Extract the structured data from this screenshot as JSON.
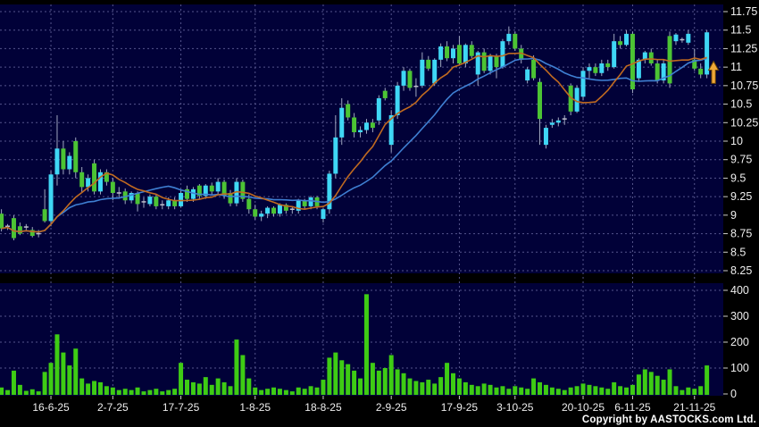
{
  "footer": {
    "copyright": "Copyright by AASTOCKS.com Ltd."
  },
  "chart_data": {
    "type": "candlestick_with_volume",
    "title": "",
    "grid": true,
    "price_axis": {
      "min": 8.25,
      "max": 11.75,
      "step": 0.25,
      "ticks": [
        "11.75",
        "11.5",
        "11.25",
        "11",
        "10.75",
        "10.5",
        "10.25",
        "10",
        "9.75",
        "9.5",
        "9.25",
        "9",
        "8.75",
        "8.5",
        "8.25"
      ]
    },
    "volume_axis": {
      "min": 0,
      "max": 400,
      "step": 100,
      "ticks": [
        "400",
        "300",
        "200",
        "100",
        "0"
      ]
    },
    "x_ticks": [
      {
        "index": 8,
        "label": "16-6-25"
      },
      {
        "index": 18,
        "label": "2-7-25"
      },
      {
        "index": 29,
        "label": "17-7-25"
      },
      {
        "index": 41,
        "label": "1-8-25"
      },
      {
        "index": 52,
        "label": "18-8-25"
      },
      {
        "index": 63,
        "label": "2-9-25"
      },
      {
        "index": 74,
        "label": "17-9-25"
      },
      {
        "index": 83,
        "label": "3-10-25"
      },
      {
        "index": 94,
        "label": "20-10-25"
      },
      {
        "index": 102,
        "label": "6-11-25"
      },
      {
        "index": 112,
        "label": "21-11-25"
      }
    ],
    "ma": {
      "short_period": 10,
      "long_period": 20
    },
    "signal_arrow": {
      "index": 114,
      "direction": "up",
      "tip_price": 11.08,
      "base_price": 10.78
    },
    "colors": {
      "background": "#000000",
      "panel": "#010138",
      "grid": "#55558c",
      "up": "#3fd7f5",
      "down": "#4cc434",
      "doji": "#c0c0cc",
      "wick": "#a0a8c0",
      "volume": "#3ecc14",
      "ma_short": "#c06a20",
      "ma_long": "#3f7fd2",
      "axis_text": "#eeeeee",
      "tick_mark": "#cccccc",
      "arrow_fill": "#f0a838",
      "arrow_stroke": "#6b4404"
    },
    "candles": [
      [
        9.02,
        9.08,
        8.78,
        8.82,
        25
      ],
      [
        8.84,
        8.88,
        8.8,
        8.85,
        15
      ],
      [
        8.96,
        9.0,
        8.66,
        8.69,
        90
      ],
      [
        8.85,
        8.9,
        8.73,
        8.75,
        35
      ],
      [
        8.84,
        8.88,
        8.8,
        8.84,
        12
      ],
      [
        8.8,
        8.84,
        8.7,
        8.72,
        18
      ],
      [
        8.75,
        8.8,
        8.7,
        8.75,
        10
      ],
      [
        9.08,
        9.35,
        8.9,
        8.92,
        85
      ],
      [
        8.92,
        9.6,
        8.85,
        9.55,
        120
      ],
      [
        9.55,
        10.35,
        9.4,
        9.9,
        230
      ],
      [
        9.9,
        10.0,
        9.55,
        9.62,
        160
      ],
      [
        9.62,
        9.85,
        9.55,
        9.8,
        110
      ],
      [
        10.0,
        10.05,
        9.5,
        9.58,
        175
      ],
      [
        9.58,
        9.65,
        9.3,
        9.38,
        60
      ],
      [
        9.38,
        9.55,
        9.32,
        9.5,
        40
      ],
      [
        9.7,
        9.75,
        9.28,
        9.32,
        50
      ],
      [
        9.32,
        9.62,
        9.28,
        9.58,
        45
      ],
      [
        9.58,
        9.62,
        9.4,
        9.45,
        30
      ],
      [
        9.45,
        9.5,
        9.2,
        9.3,
        25
      ],
      [
        9.3,
        9.38,
        9.22,
        9.3,
        15
      ],
      [
        9.32,
        9.36,
        9.15,
        9.2,
        20
      ],
      [
        9.2,
        9.32,
        9.16,
        9.3,
        15
      ],
      [
        9.3,
        9.32,
        9.05,
        9.15,
        25
      ],
      [
        9.18,
        9.24,
        9.1,
        9.18,
        10
      ],
      [
        9.15,
        9.28,
        9.12,
        9.25,
        15
      ],
      [
        9.25,
        9.28,
        9.08,
        9.12,
        20
      ],
      [
        9.14,
        9.2,
        9.08,
        9.14,
        10
      ],
      [
        9.12,
        9.24,
        9.08,
        9.2,
        15
      ],
      [
        9.2,
        9.24,
        9.08,
        9.12,
        20
      ],
      [
        9.12,
        9.35,
        9.1,
        9.3,
        120
      ],
      [
        9.35,
        9.4,
        9.18,
        9.22,
        55
      ],
      [
        9.22,
        9.38,
        9.18,
        9.35,
        45
      ],
      [
        9.4,
        9.42,
        9.22,
        9.26,
        40
      ],
      [
        9.26,
        9.42,
        9.22,
        9.4,
        65
      ],
      [
        9.4,
        9.44,
        9.28,
        9.32,
        35
      ],
      [
        9.32,
        9.5,
        9.28,
        9.45,
        60
      ],
      [
        9.45,
        9.48,
        9.22,
        9.26,
        45
      ],
      [
        9.3,
        9.34,
        9.12,
        9.16,
        30
      ],
      [
        9.16,
        9.5,
        9.12,
        9.45,
        210
      ],
      [
        9.45,
        9.48,
        9.18,
        9.22,
        150
      ],
      [
        9.22,
        9.28,
        9.02,
        9.08,
        60
      ],
      [
        9.08,
        9.14,
        8.94,
        8.98,
        25
      ],
      [
        8.98,
        9.06,
        8.92,
        9.02,
        15
      ],
      [
        9.02,
        9.12,
        8.96,
        9.1,
        20
      ],
      [
        9.1,
        9.12,
        8.98,
        9.02,
        25
      ],
      [
        9.02,
        9.16,
        8.98,
        9.14,
        20
      ],
      [
        9.14,
        9.16,
        9.02,
        9.06,
        15
      ],
      [
        9.08,
        9.12,
        9.02,
        9.08,
        10
      ],
      [
        9.06,
        9.22,
        9.02,
        9.2,
        25
      ],
      [
        9.2,
        9.22,
        9.08,
        9.12,
        20
      ],
      [
        9.12,
        9.26,
        9.08,
        9.24,
        30
      ],
      [
        9.24,
        9.26,
        9.08,
        9.12,
        25
      ],
      [
        8.95,
        9.1,
        8.9,
        9.08,
        55
      ],
      [
        9.08,
        9.6,
        9.02,
        9.56,
        140
      ],
      [
        9.56,
        10.35,
        9.5,
        10.05,
        160
      ],
      [
        10.05,
        10.58,
        9.95,
        10.45,
        130
      ],
      [
        10.5,
        10.55,
        10.28,
        10.32,
        115
      ],
      [
        10.32,
        10.38,
        10.05,
        10.12,
        90
      ],
      [
        10.12,
        10.2,
        10.05,
        10.15,
        60
      ],
      [
        10.15,
        10.3,
        10.1,
        10.25,
        385
      ],
      [
        10.25,
        10.3,
        10.12,
        10.18,
        120
      ],
      [
        10.28,
        10.62,
        10.22,
        10.58,
        90
      ],
      [
        10.68,
        10.72,
        10.55,
        10.58,
        100
      ],
      [
        9.95,
        10.42,
        9.85,
        10.35,
        150
      ],
      [
        10.35,
        10.8,
        10.3,
        10.75,
        95
      ],
      [
        10.75,
        11.0,
        10.68,
        10.95,
        80
      ],
      [
        10.95,
        10.98,
        10.68,
        10.72,
        60
      ],
      [
        10.74,
        10.85,
        10.6,
        10.74,
        50
      ],
      [
        10.75,
        11.2,
        10.72,
        11.1,
        45
      ],
      [
        11.1,
        11.15,
        10.95,
        10.98,
        55
      ],
      [
        10.78,
        11.12,
        10.75,
        11.1,
        40
      ],
      [
        11.1,
        11.32,
        11.0,
        11.28,
        65
      ],
      [
        11.28,
        11.35,
        11.08,
        11.12,
        120
      ],
      [
        11.12,
        11.3,
        11.05,
        11.25,
        80
      ],
      [
        11.3,
        11.42,
        11.02,
        11.05,
        60
      ],
      [
        11.05,
        11.32,
        11.0,
        11.3,
        45
      ],
      [
        11.3,
        11.35,
        11.12,
        11.15,
        35
      ],
      [
        10.9,
        11.22,
        10.75,
        11.2,
        30
      ],
      [
        11.2,
        11.25,
        10.92,
        10.95,
        40
      ],
      [
        10.95,
        11.18,
        10.9,
        11.15,
        35
      ],
      [
        11.15,
        11.18,
        10.85,
        11.0,
        25
      ],
      [
        11.0,
        11.38,
        10.98,
        11.35,
        30
      ],
      [
        11.35,
        11.55,
        11.3,
        11.45,
        20
      ],
      [
        11.45,
        11.48,
        11.22,
        11.25,
        30
      ],
      [
        11.25,
        11.3,
        11.05,
        11.1,
        25
      ],
      [
        10.82,
        11.0,
        10.78,
        10.97,
        20
      ],
      [
        11.1,
        11.16,
        10.82,
        10.85,
        60
      ],
      [
        10.8,
        10.85,
        9.95,
        10.3,
        45
      ],
      [
        9.95,
        10.22,
        9.9,
        10.18,
        35
      ],
      [
        10.22,
        10.3,
        10.18,
        10.25,
        25
      ],
      [
        10.25,
        10.32,
        10.2,
        10.28,
        20
      ],
      [
        10.28,
        10.35,
        10.22,
        10.3,
        15
      ],
      [
        10.75,
        10.78,
        10.35,
        10.4,
        25
      ],
      [
        10.4,
        10.75,
        10.38,
        10.72,
        30
      ],
      [
        10.6,
        11.0,
        10.55,
        10.95,
        40
      ],
      [
        10.95,
        11.05,
        10.85,
        11.0,
        35
      ],
      [
        11.0,
        11.05,
        10.88,
        10.92,
        30
      ],
      [
        10.92,
        11.1,
        10.88,
        11.05,
        25
      ],
      [
        11.05,
        11.1,
        10.95,
        11.0,
        20
      ],
      [
        11.0,
        11.45,
        10.98,
        11.35,
        45
      ],
      [
        11.35,
        11.42,
        11.25,
        11.3,
        30
      ],
      [
        11.3,
        11.5,
        11.28,
        11.45,
        25
      ],
      [
        11.45,
        11.48,
        10.65,
        10.7,
        35
      ],
      [
        10.85,
        11.12,
        10.8,
        11.1,
        75
      ],
      [
        11.1,
        11.22,
        11.05,
        11.2,
        95
      ],
      [
        11.2,
        11.25,
        11.02,
        11.05,
        85
      ],
      [
        11.05,
        11.1,
        10.78,
        10.82,
        70
      ],
      [
        10.82,
        11.1,
        10.78,
        11.05,
        55
      ],
      [
        11.42,
        11.48,
        10.72,
        10.78,
        95
      ],
      [
        11.35,
        11.46,
        11.3,
        11.44,
        30
      ],
      [
        11.37,
        11.4,
        11.33,
        11.37,
        15
      ],
      [
        11.33,
        11.5,
        11.3,
        11.45,
        25
      ],
      [
        11.1,
        11.25,
        10.95,
        10.98,
        20
      ],
      [
        10.98,
        11.05,
        10.85,
        10.9,
        30
      ],
      [
        10.9,
        11.5,
        10.85,
        11.47,
        110
      ]
    ]
  }
}
